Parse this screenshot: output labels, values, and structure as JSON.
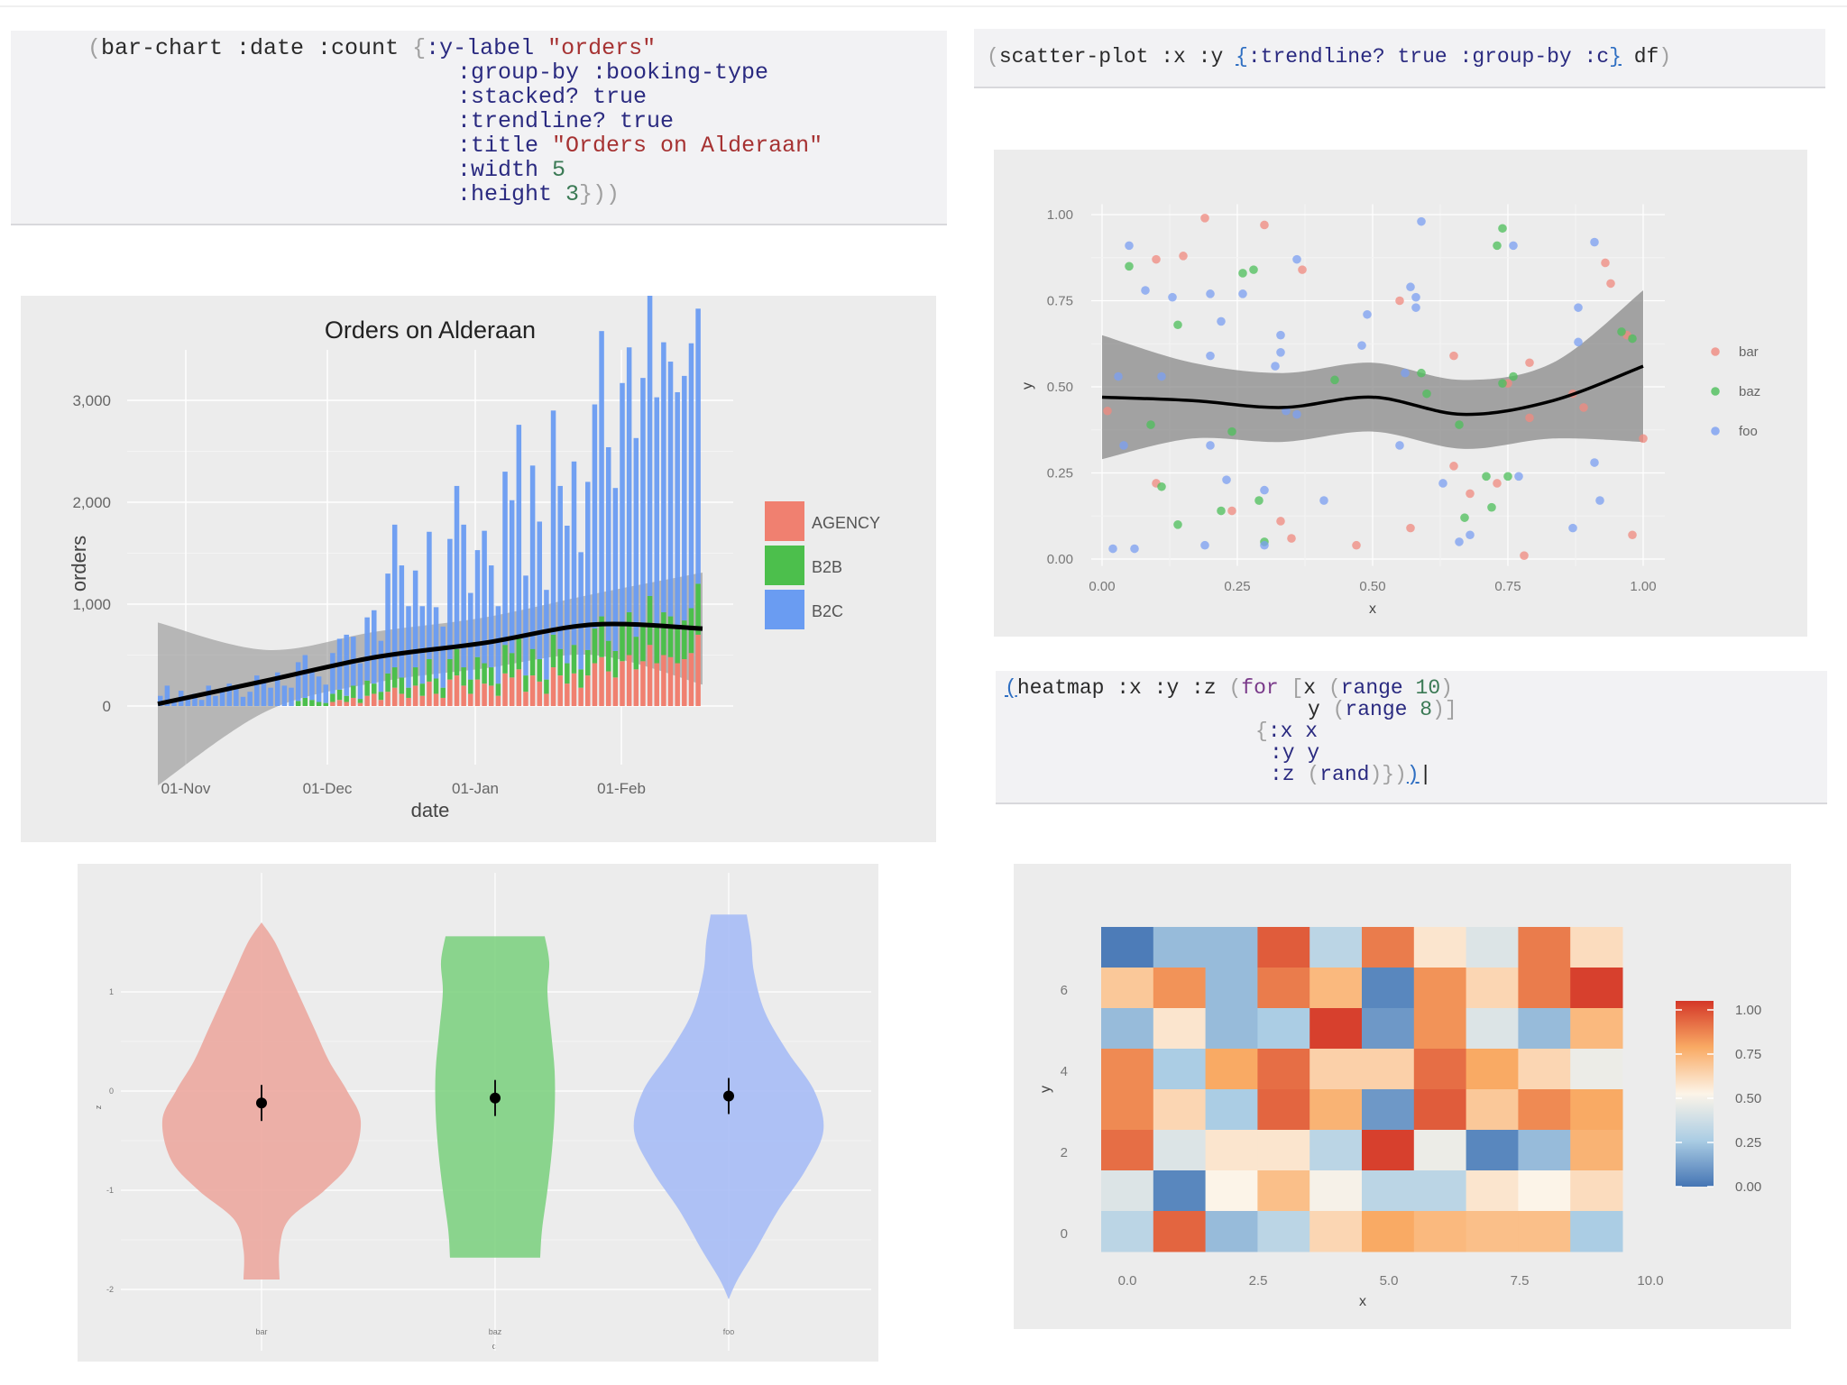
{
  "code_bar": {
    "l1_a": "bar-chart :date :count ",
    "l1_b": ":y-label ",
    "l1_c": "\"orders\"",
    "l2": ":group-by :booking-type",
    "l3_a": ":stacked? ",
    "l3_b": "true",
    "l4_a": ":trendline? ",
    "l4_b": "true",
    "l5_a": ":title ",
    "l5_b": "\"Orders on Alderaan\"",
    "l6_a": ":width ",
    "l6_b": "5",
    "l7_a": ":height ",
    "l7_b": "3"
  },
  "code_scatter": {
    "a": "scatter-plot :x :y ",
    "b": ":trendline? true :group-by :c",
    "c": " df"
  },
  "code_heatmap": {
    "l1_a": "heatmap :x :y :z ",
    "l1_b": "for ",
    "l1_c": "x ",
    "l1_d": "range ",
    "l1_e": "10",
    "l2_a": "y ",
    "l2_b": "range ",
    "l2_c": "8",
    "l3": ":x x",
    "l4": ":y y",
    "l5_a": ":z ",
    "l5_b": "rand"
  },
  "colors": {
    "agency": "#f08070",
    "b2b": "#4cbf4c",
    "b2c": "#6a9cf2",
    "panel_bg": "#ececec"
  },
  "chart_data": [
    {
      "type": "bar",
      "title": "Orders on Alderaan",
      "xlabel": "date",
      "ylabel": "orders",
      "stacked": true,
      "trendline": true,
      "yticks": [
        "0",
        "1,000",
        "2,000",
        "3,000"
      ],
      "ylim": [
        -500,
        3300
      ],
      "xticks": [
        "01-Nov",
        "01-Dec",
        "01-Jan",
        "01-Feb"
      ],
      "legend": [
        "AGENCY",
        "B2B",
        "B2C"
      ],
      "legend_position": "right",
      "series_b2c": [
        100,
        200,
        50,
        150,
        80,
        120,
        60,
        200,
        100,
        150,
        220,
        180,
        90,
        140,
        300,
        250,
        180,
        330,
        200,
        180,
        380,
        420,
        300,
        250,
        180,
        400,
        500,
        600,
        480,
        350,
        620,
        720,
        500,
        980,
        1400,
        1100,
        800,
        950,
        760,
        1250,
        700,
        600,
        1180,
        1600,
        1400,
        850,
        1050,
        1300,
        1000,
        760,
        1700,
        1500,
        2100,
        980,
        1800,
        1350,
        880,
        2200,
        1600,
        1350,
        1800,
        1150,
        1650,
        2200,
        2800,
        1900,
        1600,
        2350,
        2600,
        1950,
        2400,
        3100,
        2250,
        2650,
        2500,
        2300,
        2400,
        2600,
        2700
      ],
      "series_b2b": [
        0,
        0,
        0,
        0,
        0,
        0,
        0,
        0,
        0,
        0,
        0,
        0,
        0,
        0,
        0,
        0,
        0,
        0,
        0,
        0,
        50,
        80,
        60,
        40,
        30,
        80,
        100,
        60,
        120,
        40,
        150,
        100,
        80,
        180,
        200,
        160,
        100,
        180,
        120,
        220,
        150,
        100,
        200,
        260,
        180,
        140,
        220,
        200,
        180,
        120,
        280,
        240,
        300,
        160,
        260,
        220,
        140,
        320,
        260,
        200,
        280,
        180,
        250,
        340,
        400,
        300,
        260,
        380,
        420,
        320,
        380,
        480,
        360,
        420,
        400,
        360,
        380,
        440,
        500
      ],
      "series_agency": [
        0,
        0,
        0,
        0,
        0,
        0,
        0,
        0,
        0,
        0,
        0,
        0,
        0,
        0,
        0,
        0,
        0,
        0,
        0,
        0,
        0,
        0,
        0,
        0,
        0,
        40,
        60,
        40,
        80,
        30,
        100,
        120,
        60,
        140,
        180,
        120,
        80,
        200,
        100,
        240,
        120,
        80,
        260,
        300,
        200,
        120,
        260,
        220,
        200,
        100,
        320,
        280,
        360,
        140,
        300,
        240,
        120,
        380,
        300,
        220,
        320,
        180,
        300,
        420,
        480,
        340,
        280,
        440,
        500,
        360,
        440,
        600,
        420,
        500,
        480,
        420,
        460,
        520,
        700
      ],
      "trend_y": [
        20,
        250,
        480,
        620,
        800,
        760
      ]
    },
    {
      "type": "scatter",
      "xlabel": "x",
      "ylabel": "y",
      "xlim": [
        0,
        1
      ],
      "ylim": [
        0,
        1
      ],
      "xticks": [
        "0.00",
        "0.25",
        "0.50",
        "0.75",
        "1.00"
      ],
      "yticks": [
        "0.00",
        "0.25",
        "0.50",
        "0.75",
        "1.00"
      ],
      "legend": [
        "bar",
        "baz",
        "foo"
      ],
      "legend_position": "right",
      "series": [
        {
          "name": "bar",
          "points": [
            [
              0.01,
              0.43
            ],
            [
              0.1,
              0.87
            ],
            [
              0.15,
              0.88
            ],
            [
              0.19,
              0.99
            ],
            [
              0.1,
              0.22
            ],
            [
              0.24,
              0.14
            ],
            [
              0.3,
              0.97
            ],
            [
              0.33,
              0.11
            ],
            [
              0.37,
              0.84
            ],
            [
              0.47,
              0.04
            ],
            [
              0.55,
              0.75
            ],
            [
              0.57,
              0.09
            ],
            [
              0.65,
              0.59
            ],
            [
              0.65,
              0.27
            ],
            [
              0.68,
              0.19
            ],
            [
              0.75,
              0.51
            ],
            [
              0.78,
              0.01
            ],
            [
              0.79,
              0.41
            ],
            [
              0.87,
              0.48
            ],
            [
              0.89,
              0.44
            ],
            [
              0.93,
              0.86
            ],
            [
              0.94,
              0.8
            ],
            [
              0.97,
              0.65
            ],
            [
              0.98,
              0.07
            ],
            [
              1.0,
              0.35
            ],
            [
              0.79,
              0.57
            ],
            [
              0.35,
              0.06
            ],
            [
              0.73,
              0.22
            ]
          ]
        },
        {
          "name": "baz",
          "points": [
            [
              0.05,
              0.85
            ],
            [
              0.09,
              0.39
            ],
            [
              0.11,
              0.21
            ],
            [
              0.14,
              0.68
            ],
            [
              0.14,
              0.1
            ],
            [
              0.22,
              0.14
            ],
            [
              0.24,
              0.37
            ],
            [
              0.26,
              0.83
            ],
            [
              0.28,
              0.84
            ],
            [
              0.29,
              0.17
            ],
            [
              0.3,
              0.05
            ],
            [
              0.43,
              0.52
            ],
            [
              0.59,
              0.54
            ],
            [
              0.6,
              0.48
            ],
            [
              0.66,
              0.39
            ],
            [
              0.67,
              0.12
            ],
            [
              0.71,
              0.24
            ],
            [
              0.72,
              0.15
            ],
            [
              0.75,
              0.24
            ],
            [
              0.74,
              0.96
            ],
            [
              0.73,
              0.91
            ],
            [
              0.76,
              0.53
            ],
            [
              0.74,
              0.51
            ],
            [
              0.96,
              0.66
            ],
            [
              0.98,
              0.64
            ]
          ]
        },
        {
          "name": "foo",
          "points": [
            [
              0.02,
              0.03
            ],
            [
              0.03,
              0.53
            ],
            [
              0.04,
              0.33
            ],
            [
              0.05,
              0.91
            ],
            [
              0.06,
              0.03
            ],
            [
              0.08,
              0.78
            ],
            [
              0.11,
              0.53
            ],
            [
              0.13,
              0.76
            ],
            [
              0.19,
              0.04
            ],
            [
              0.2,
              0.59
            ],
            [
              0.2,
              0.77
            ],
            [
              0.2,
              0.33
            ],
            [
              0.22,
              0.69
            ],
            [
              0.23,
              0.23
            ],
            [
              0.26,
              0.77
            ],
            [
              0.3,
              0.04
            ],
            [
              0.3,
              0.2
            ],
            [
              0.32,
              0.56
            ],
            [
              0.33,
              0.6
            ],
            [
              0.33,
              0.65
            ],
            [
              0.34,
              0.43
            ],
            [
              0.36,
              0.42
            ],
            [
              0.36,
              0.87
            ],
            [
              0.41,
              0.17
            ],
            [
              0.48,
              0.62
            ],
            [
              0.49,
              0.71
            ],
            [
              0.55,
              0.33
            ],
            [
              0.56,
              0.54
            ],
            [
              0.57,
              0.79
            ],
            [
              0.58,
              0.76
            ],
            [
              0.58,
              0.73
            ],
            [
              0.59,
              0.98
            ],
            [
              0.63,
              0.22
            ],
            [
              0.66,
              0.05
            ],
            [
              0.68,
              0.07
            ],
            [
              0.76,
              0.91
            ],
            [
              0.77,
              0.24
            ],
            [
              0.88,
              0.63
            ],
            [
              0.88,
              0.73
            ],
            [
              0.91,
              0.28
            ],
            [
              0.91,
              0.92
            ],
            [
              0.92,
              0.17
            ],
            [
              0.87,
              0.09
            ]
          ]
        }
      ],
      "trend_y": [
        0.47,
        0.46,
        0.44,
        0.47,
        0.42,
        0.46,
        0.56
      ]
    },
    {
      "type": "violin",
      "categories": [
        "bar",
        "baz",
        "foo"
      ],
      "xlabel": "c",
      "ylabel": "z",
      "yticks": [
        "1",
        "0",
        "-1",
        "-2"
      ],
      "points": [
        -0.12,
        -0.07,
        -0.05
      ]
    },
    {
      "type": "heatmap",
      "xlabel": "x",
      "ylabel": "y",
      "xticks": [
        "0.0",
        "2.5",
        "5.0",
        "7.5",
        "10.0"
      ],
      "yticks": [
        "0",
        "2",
        "4",
        "6"
      ],
      "legend_ticks": [
        "0.00",
        "0.25",
        "0.50",
        "0.75",
        "1.00"
      ],
      "values": [
        [
          0.02,
          0.2,
          0.2,
          0.92,
          0.3,
          0.85,
          0.55,
          0.4,
          0.85,
          0.58
        ],
        [
          0.65,
          0.8,
          0.2,
          0.85,
          0.7,
          0.05,
          0.8,
          0.6,
          0.85,
          0.98
        ],
        [
          0.2,
          0.55,
          0.2,
          0.25,
          0.98,
          0.1,
          0.8,
          0.4,
          0.2,
          0.7
        ],
        [
          0.82,
          0.25,
          0.75,
          0.88,
          0.62,
          0.62,
          0.88,
          0.75,
          0.6,
          0.45
        ],
        [
          0.82,
          0.6,
          0.25,
          0.9,
          0.72,
          0.1,
          0.92,
          0.65,
          0.82,
          0.75
        ],
        [
          0.88,
          0.4,
          0.55,
          0.55,
          0.3,
          0.98,
          0.45,
          0.05,
          0.2,
          0.72
        ],
        [
          0.4,
          0.05,
          0.5,
          0.68,
          0.48,
          0.3,
          0.3,
          0.55,
          0.5,
          0.58
        ],
        [
          0.3,
          0.9,
          0.2,
          0.3,
          0.6,
          0.75,
          0.7,
          0.68,
          0.68,
          0.25
        ]
      ]
    }
  ]
}
